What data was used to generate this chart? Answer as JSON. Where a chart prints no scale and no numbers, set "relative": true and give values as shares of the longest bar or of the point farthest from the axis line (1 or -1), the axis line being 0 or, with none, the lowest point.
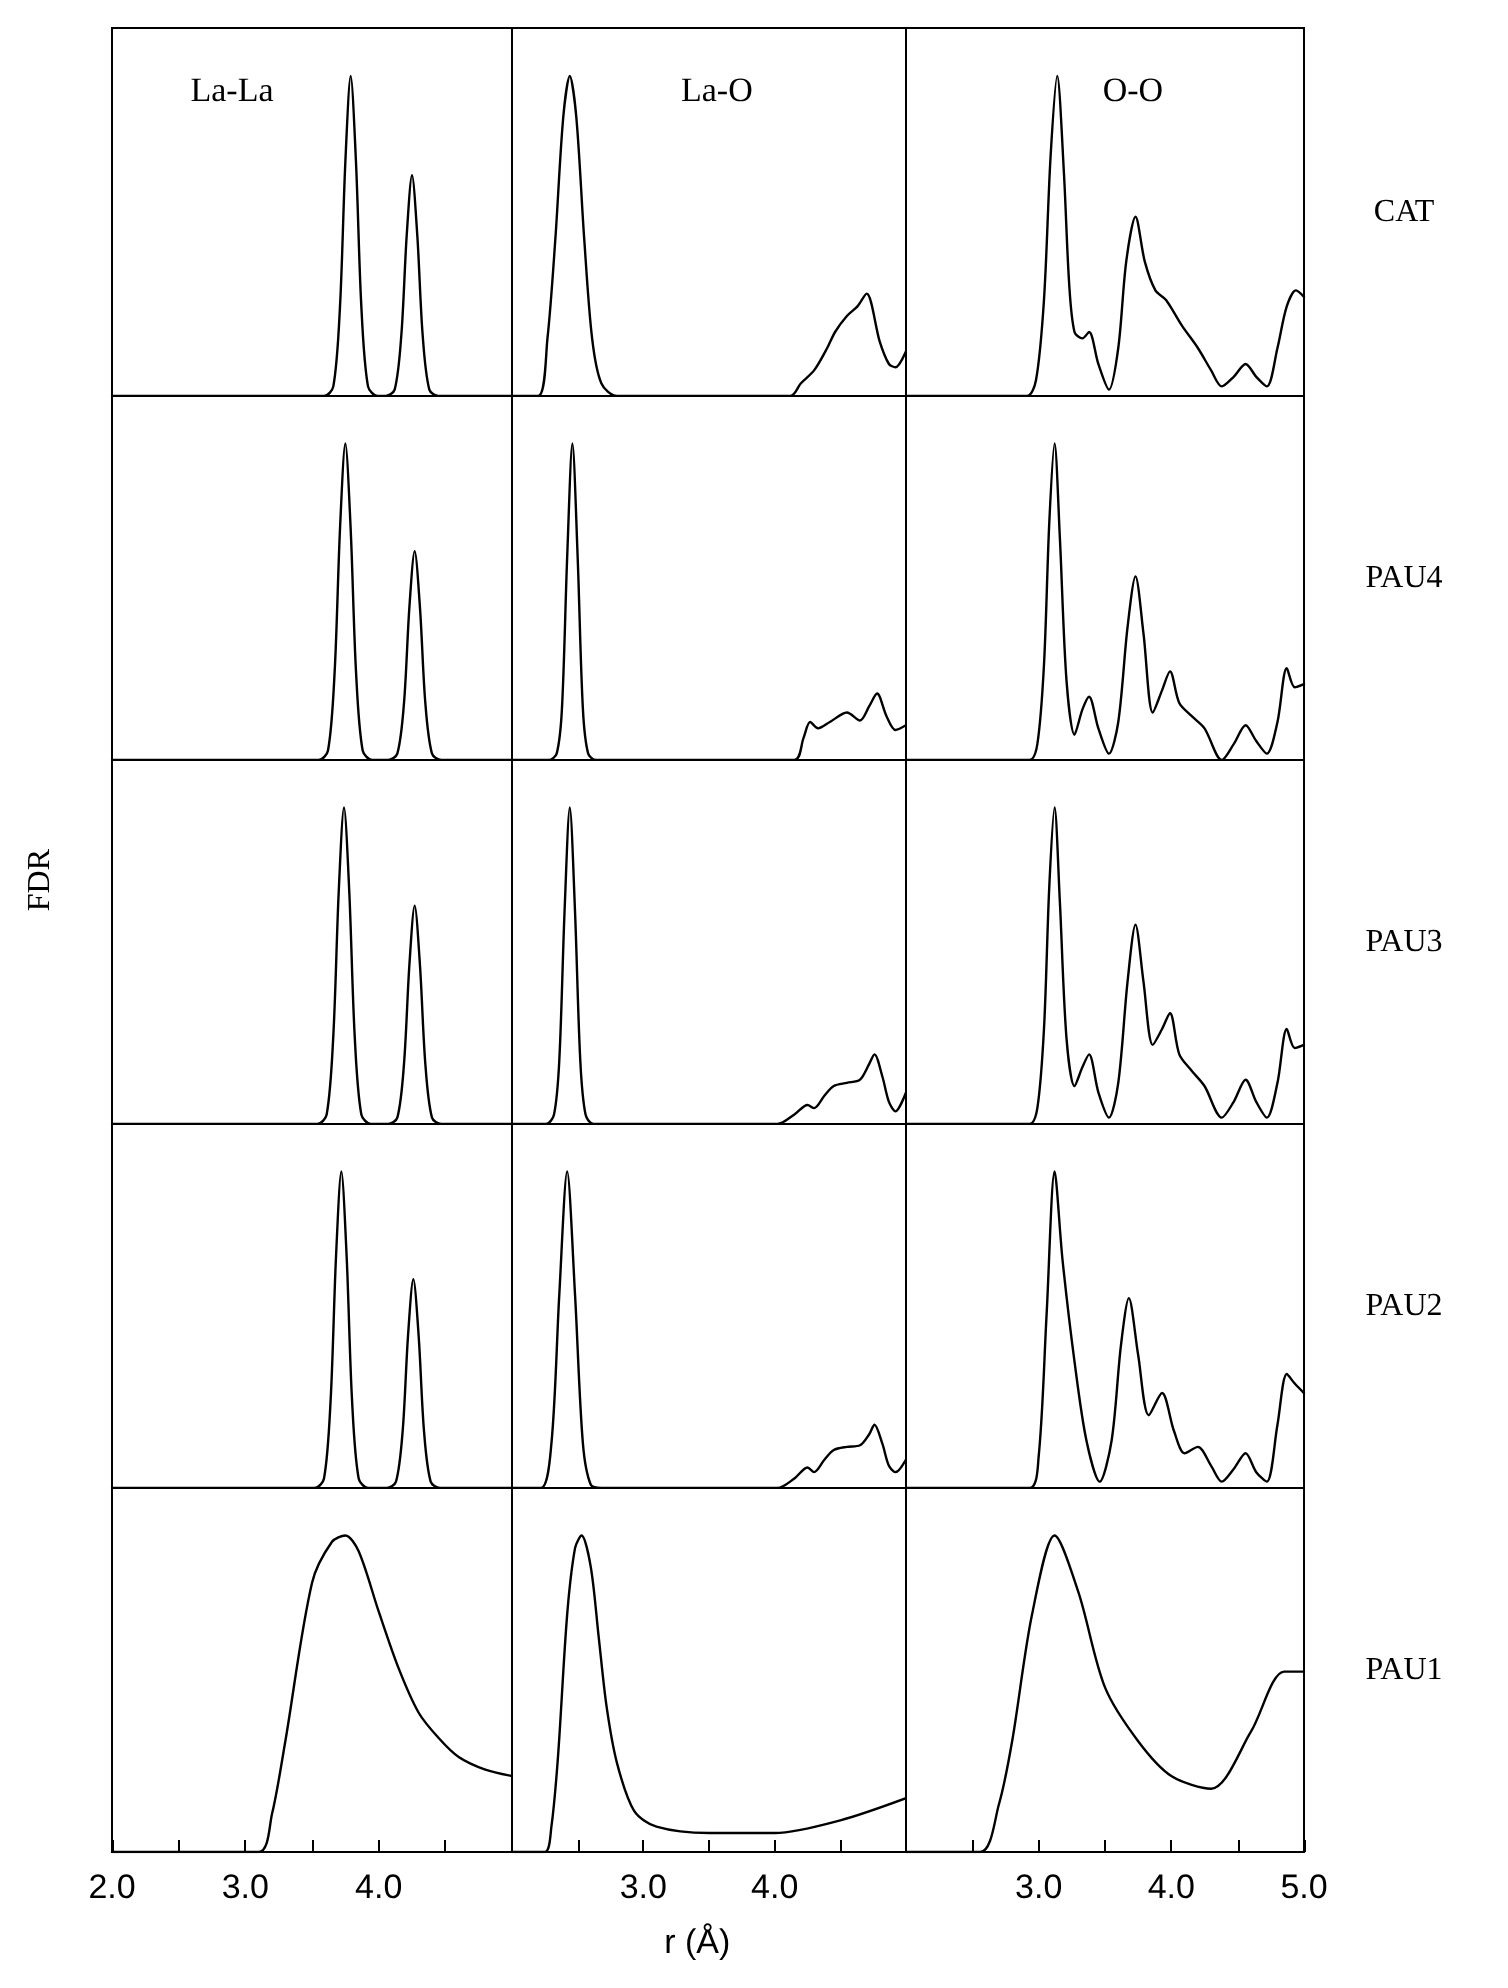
{
  "chart_data": [
    {
      "type": "line",
      "title": "La-La",
      "color": "#000000",
      "relative": true,
      "xlim": [
        2,
        5
      ],
      "tick_labels": false,
      "x": [
        2.0,
        3.59,
        3.66,
        3.71,
        3.75,
        3.79,
        3.83,
        3.87,
        3.92,
        3.99,
        4.05,
        4.12,
        4.17,
        4.21,
        4.25,
        4.29,
        4.33,
        4.38,
        4.45,
        5.0
      ],
      "values": [
        0,
        0,
        0.03,
        0.28,
        0.73,
        1,
        0.73,
        0.28,
        0.03,
        0,
        0,
        0.02,
        0.19,
        0.5,
        0.69,
        0.5,
        0.19,
        0.02,
        0,
        0
      ]
    },
    {
      "type": "line",
      "title": "La-O",
      "color": "#000000",
      "relative": true,
      "xlim": [
        2,
        5
      ],
      "tick_labels": false,
      "x": [
        2.0,
        2.2,
        2.27,
        2.33,
        2.39,
        2.44,
        2.49,
        2.55,
        2.61,
        2.68,
        2.8,
        4.12,
        4.2,
        4.3,
        4.4,
        4.46,
        4.55,
        4.63,
        4.7,
        4.8,
        4.87,
        4.92,
        5.0
      ],
      "values": [
        0,
        0,
        0.18,
        0.49,
        0.87,
        1,
        0.87,
        0.49,
        0.18,
        0.04,
        0,
        0,
        0.04,
        0.08,
        0.15,
        0.2,
        0.25,
        0.28,
        0.32,
        0.17,
        0.1,
        0.09,
        0.14
      ]
    },
    {
      "type": "line",
      "title": "O-O",
      "annotations": [
        "CAT"
      ],
      "color": "#000000",
      "relative": true,
      "xlim": [
        2,
        5
      ],
      "tick_labels": false,
      "x": [
        2.0,
        2.91,
        2.98,
        3.04,
        3.09,
        3.14,
        3.19,
        3.23,
        3.27,
        3.33,
        3.38,
        3.45,
        3.53,
        3.6,
        3.66,
        3.73,
        3.8,
        3.88,
        3.96,
        4.08,
        4.2,
        4.3,
        4.38,
        4.47,
        4.56,
        4.64,
        4.72,
        4.8,
        4.87,
        4.94,
        5.0
      ],
      "values": [
        0,
        0,
        0.05,
        0.3,
        0.75,
        1,
        0.7,
        0.35,
        0.2,
        0.18,
        0.2,
        0.1,
        0.02,
        0.15,
        0.42,
        0.56,
        0.42,
        0.33,
        0.3,
        0.22,
        0.15,
        0.08,
        0.03,
        0.06,
        0.1,
        0.06,
        0.03,
        0.15,
        0.28,
        0.33,
        0.31
      ]
    },
    {
      "type": "line",
      "color": "#000000",
      "relative": true,
      "xlim": [
        2,
        5
      ],
      "tick_labels": false,
      "x": [
        2.0,
        3.55,
        3.62,
        3.67,
        3.71,
        3.75,
        3.79,
        3.83,
        3.88,
        3.95,
        4.07,
        4.14,
        4.19,
        4.23,
        4.27,
        4.31,
        4.35,
        4.4,
        4.47,
        5.0
      ],
      "values": [
        0,
        0,
        0.03,
        0.28,
        0.73,
        1,
        0.73,
        0.28,
        0.03,
        0,
        0,
        0.02,
        0.18,
        0.48,
        0.66,
        0.48,
        0.18,
        0.02,
        0,
        0
      ]
    },
    {
      "type": "line",
      "color": "#000000",
      "relative": true,
      "xlim": [
        2,
        5
      ],
      "tick_labels": false,
      "x": [
        2.0,
        2.28,
        2.34,
        2.38,
        2.42,
        2.46,
        2.5,
        2.54,
        2.58,
        2.64,
        4.15,
        4.22,
        4.27,
        4.33,
        4.42,
        4.55,
        4.65,
        4.72,
        4.78,
        4.85,
        4.92,
        5.0
      ],
      "values": [
        0,
        0,
        0.02,
        0.16,
        0.64,
        1,
        0.64,
        0.16,
        0.02,
        0,
        0,
        0.07,
        0.12,
        0.1,
        0.12,
        0.15,
        0.125,
        0.17,
        0.21,
        0.14,
        0.095,
        0.11
      ]
    },
    {
      "type": "line",
      "annotations": [
        "PAU4"
      ],
      "color": "#000000",
      "relative": true,
      "xlim": [
        2,
        5
      ],
      "tick_labels": false,
      "x": [
        2.0,
        2.93,
        2.99,
        3.04,
        3.08,
        3.12,
        3.16,
        3.21,
        3.27,
        3.33,
        3.38,
        3.45,
        3.53,
        3.6,
        3.67,
        3.73,
        3.79,
        3.86,
        3.93,
        3.99,
        4.06,
        4.15,
        4.25,
        4.38,
        4.47,
        4.56,
        4.64,
        4.72,
        4.8,
        4.87,
        4.93,
        5.0
      ],
      "values": [
        0,
        0,
        0.05,
        0.3,
        0.75,
        1,
        0.7,
        0.25,
        0.08,
        0.16,
        0.2,
        0.1,
        0.02,
        0.12,
        0.42,
        0.58,
        0.4,
        0.15,
        0.22,
        0.28,
        0.18,
        0.14,
        0.1,
        0,
        0.05,
        0.11,
        0.06,
        0.02,
        0.12,
        0.29,
        0.23,
        0.24
      ]
    },
    {
      "type": "line",
      "ylabel": "FDR",
      "color": "#000000",
      "relative": true,
      "xlim": [
        2,
        5
      ],
      "tick_labels": false,
      "x": [
        2.0,
        3.54,
        3.61,
        3.66,
        3.7,
        3.74,
        3.78,
        3.82,
        3.87,
        3.94,
        4.07,
        4.14,
        4.19,
        4.23,
        4.27,
        4.31,
        4.35,
        4.4,
        4.47,
        5.0
      ],
      "values": [
        0,
        0,
        0.03,
        0.28,
        0.73,
        1,
        0.73,
        0.28,
        0.03,
        0,
        0,
        0.02,
        0.19,
        0.5,
        0.69,
        0.5,
        0.19,
        0.02,
        0,
        0
      ]
    },
    {
      "type": "line",
      "color": "#000000",
      "relative": true,
      "xlim": [
        2,
        5
      ],
      "tick_labels": false,
      "x": [
        2.0,
        2.26,
        2.32,
        2.36,
        2.4,
        2.44,
        2.48,
        2.52,
        2.56,
        2.62,
        4.02,
        4.15,
        4.25,
        4.3,
        4.38,
        4.45,
        4.55,
        4.65,
        4.72,
        4.76,
        4.82,
        4.87,
        4.92,
        5.0
      ],
      "values": [
        0,
        0,
        0.03,
        0.2,
        0.67,
        1,
        0.67,
        0.2,
        0.03,
        0,
        0,
        0.03,
        0.06,
        0.05,
        0.09,
        0.12,
        0.13,
        0.14,
        0.19,
        0.22,
        0.15,
        0.07,
        0.04,
        0.1
      ]
    },
    {
      "type": "line",
      "annotations": [
        "PAU3"
      ],
      "color": "#000000",
      "relative": true,
      "xlim": [
        2,
        5
      ],
      "tick_labels": false,
      "x": [
        2.0,
        2.93,
        2.99,
        3.04,
        3.08,
        3.12,
        3.16,
        3.21,
        3.27,
        3.33,
        3.38,
        3.45,
        3.53,
        3.6,
        3.67,
        3.73,
        3.79,
        3.86,
        3.93,
        3.99,
        4.06,
        4.15,
        4.25,
        4.38,
        4.47,
        4.56,
        4.64,
        4.72,
        4.8,
        4.87,
        4.93,
        5.0
      ],
      "values": [
        0,
        0,
        0.05,
        0.3,
        0.75,
        1,
        0.7,
        0.27,
        0.12,
        0.18,
        0.22,
        0.1,
        0.02,
        0.13,
        0.45,
        0.63,
        0.45,
        0.25,
        0.3,
        0.35,
        0.22,
        0.17,
        0.12,
        0.02,
        0.07,
        0.14,
        0.07,
        0.02,
        0.13,
        0.3,
        0.24,
        0.25
      ]
    },
    {
      "type": "line",
      "color": "#000000",
      "relative": true,
      "xlim": [
        2,
        5
      ],
      "tick_labels": false,
      "x": [
        2.0,
        3.52,
        3.59,
        3.64,
        3.68,
        3.72,
        3.76,
        3.8,
        3.85,
        3.92,
        4.06,
        4.13,
        4.18,
        4.22,
        4.26,
        4.3,
        4.34,
        4.39,
        4.46,
        5.0
      ],
      "values": [
        0,
        0,
        0.03,
        0.28,
        0.73,
        1,
        0.73,
        0.28,
        0.03,
        0,
        0,
        0.02,
        0.18,
        0.48,
        0.66,
        0.48,
        0.18,
        0.02,
        0,
        0
      ]
    },
    {
      "type": "line",
      "color": "#000000",
      "relative": true,
      "xlim": [
        2,
        5
      ],
      "tick_labels": false,
      "x": [
        2.0,
        2.22,
        2.3,
        2.36,
        2.42,
        2.48,
        2.54,
        2.6,
        2.68,
        4.02,
        4.15,
        4.25,
        4.3,
        4.38,
        4.45,
        4.55,
        4.65,
        4.72,
        4.76,
        4.82,
        4.87,
        4.92,
        5.0
      ],
      "values": [
        0,
        0,
        0.14,
        0.61,
        1,
        0.61,
        0.14,
        0.01,
        0,
        0,
        0.03,
        0.065,
        0.05,
        0.09,
        0.12,
        0.13,
        0.135,
        0.17,
        0.2,
        0.14,
        0.07,
        0.05,
        0.09
      ]
    },
    {
      "type": "line",
      "annotations": [
        "PAU2"
      ],
      "color": "#000000",
      "relative": true,
      "xlim": [
        2,
        5
      ],
      "tick_labels": false,
      "x": [
        2.0,
        2.93,
        3.0,
        3.06,
        3.12,
        3.18,
        3.27,
        3.36,
        3.46,
        3.55,
        3.62,
        3.68,
        3.75,
        3.83,
        3.93,
        4.02,
        4.1,
        4.2,
        4.3,
        4.38,
        4.47,
        4.56,
        4.64,
        4.72,
        4.8,
        4.87,
        4.93,
        5.0
      ],
      "values": [
        0,
        0,
        0.1,
        0.55,
        1,
        0.72,
        0.4,
        0.15,
        0.02,
        0.15,
        0.45,
        0.6,
        0.42,
        0.23,
        0.3,
        0.18,
        0.11,
        0.13,
        0.07,
        0.02,
        0.06,
        0.11,
        0.05,
        0.02,
        0.2,
        0.36,
        0.33,
        0.3
      ]
    },
    {
      "type": "line",
      "color": "#000000",
      "relative": true,
      "xlim": [
        2,
        5
      ],
      "xticks": [
        {
          "value": 2,
          "label": "2.0"
        },
        {
          "value": 2.5,
          "label": null
        },
        {
          "value": 3,
          "label": "3.0"
        },
        {
          "value": 3.5,
          "label": null
        },
        {
          "value": 4,
          "label": "4.0"
        },
        {
          "value": 4.5,
          "label": null
        }
      ],
      "tick_labels": "x",
      "x": [
        2.0,
        3.1,
        3.2,
        3.3,
        3.5,
        3.65,
        3.75,
        3.85,
        4.0,
        4.15,
        4.3,
        4.45,
        4.6,
        4.8,
        5.0
      ],
      "values": [
        0,
        0,
        0.12,
        0.35,
        0.85,
        0.98,
        1,
        0.95,
        0.76,
        0.58,
        0.44,
        0.36,
        0.3,
        0.26,
        0.24
      ]
    },
    {
      "type": "line",
      "xlabel": "r (Å)",
      "color": "#000000",
      "relative": true,
      "xlim": [
        2,
        5
      ],
      "xticks": [
        {
          "value": 2.5,
          "label": null
        },
        {
          "value": 3,
          "label": "3.0"
        },
        {
          "value": 3.5,
          "label": null
        },
        {
          "value": 4,
          "label": "4.0"
        },
        {
          "value": 4.5,
          "label": null
        }
      ],
      "tick_labels": "x",
      "x": [
        2.0,
        2.25,
        2.3,
        2.35,
        2.42,
        2.48,
        2.53,
        2.6,
        2.66,
        2.72,
        2.8,
        2.93,
        3.1,
        3.5,
        4.0,
        4.5,
        5.0
      ],
      "values": [
        0,
        0,
        0.08,
        0.3,
        0.75,
        0.96,
        1,
        0.9,
        0.68,
        0.46,
        0.28,
        0.13,
        0.08,
        0.06,
        0.06,
        0.1,
        0.17
      ]
    },
    {
      "type": "line",
      "annotations": [
        "PAU1"
      ],
      "color": "#000000",
      "relative": true,
      "xlim": [
        2,
        5
      ],
      "xticks": [
        {
          "value": 2.5,
          "label": null
        },
        {
          "value": 3,
          "label": "3.0"
        },
        {
          "value": 3.5,
          "label": null
        },
        {
          "value": 4,
          "label": "4.0"
        },
        {
          "value": 4.5,
          "label": null
        },
        {
          "value": 5,
          "label": "5.0"
        }
      ],
      "tick_labels": "x",
      "x": [
        2.0,
        2.56,
        2.7,
        2.8,
        2.95,
        3.12,
        3.3,
        3.5,
        3.75,
        4.0,
        4.3,
        4.6,
        4.85,
        5.0
      ],
      "values": [
        0,
        0,
        0.15,
        0.35,
        0.75,
        1,
        0.82,
        0.52,
        0.35,
        0.24,
        0.2,
        0.38,
        0.57,
        0.57
      ]
    }
  ]
}
